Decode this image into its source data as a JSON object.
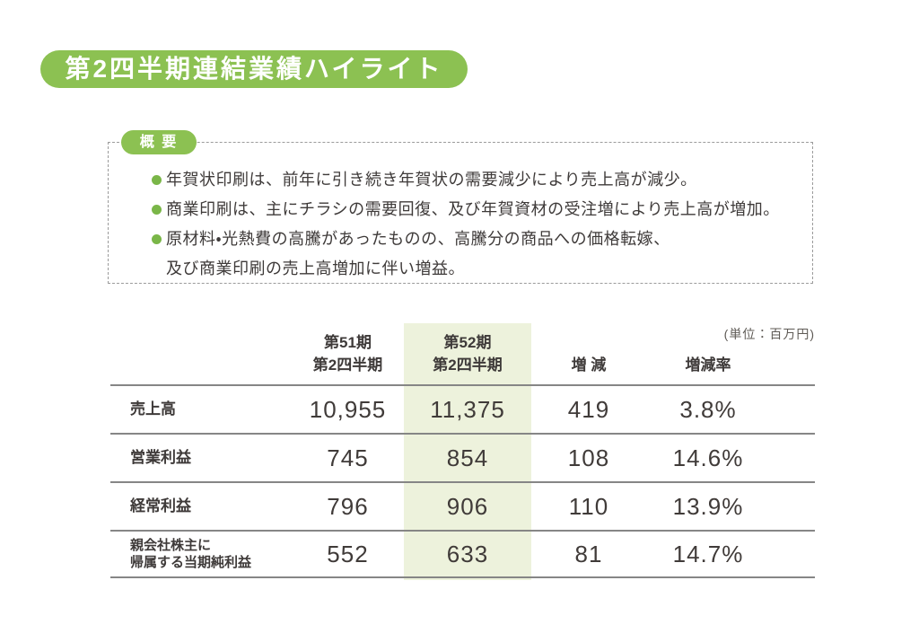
{
  "page": {
    "title": "第2四半期連結業績ハイライト"
  },
  "overview": {
    "label": "概 要",
    "bullet1": "年賀状印刷は、前年に引き続き年賀状の需要減少により売上高が減少。",
    "bullet2": "商業印刷は、主にチラシの需要回復、及び年賀資材の受注増により売上高が増加。",
    "bullet3_line1": "原材料・光熱費の高騰があったものの、高騰分の商品への価格転嫁、",
    "bullet3_line2": "及び商業印刷の売上高増加に伴い増益。"
  },
  "table": {
    "unit_note": "(単位：百万円)",
    "headers": {
      "period_prev_line1": "第51期",
      "period_prev_line2": "第2四半期",
      "period_curr_line1": "第52期",
      "period_curr_line2": "第2四半期",
      "change": "増 減",
      "change_rate": "増減率"
    },
    "rows": [
      {
        "label_line1": "売上高",
        "label_line2": "",
        "prev": "10,955",
        "curr": "11,375",
        "change": "419",
        "rate": "3.8%"
      },
      {
        "label_line1": "営業利益",
        "label_line2": "",
        "prev": "745",
        "curr": "854",
        "change": "108",
        "rate": "14.6%"
      },
      {
        "label_line1": "経常利益",
        "label_line2": "",
        "prev": "796",
        "curr": "906",
        "change": "110",
        "rate": "13.9%"
      },
      {
        "label_line1": "親会社株主に",
        "label_line2": "帰属する当期純利益",
        "prev": "552",
        "curr": "633",
        "change": "81",
        "rate": "14.7%"
      }
    ]
  },
  "colors": {
    "accent_green": "#8cc152",
    "bullet_green": "#7ab648",
    "highlight_green": "#edf2dc",
    "text_dark": "#3e3a39",
    "border_gray": "#868686"
  }
}
